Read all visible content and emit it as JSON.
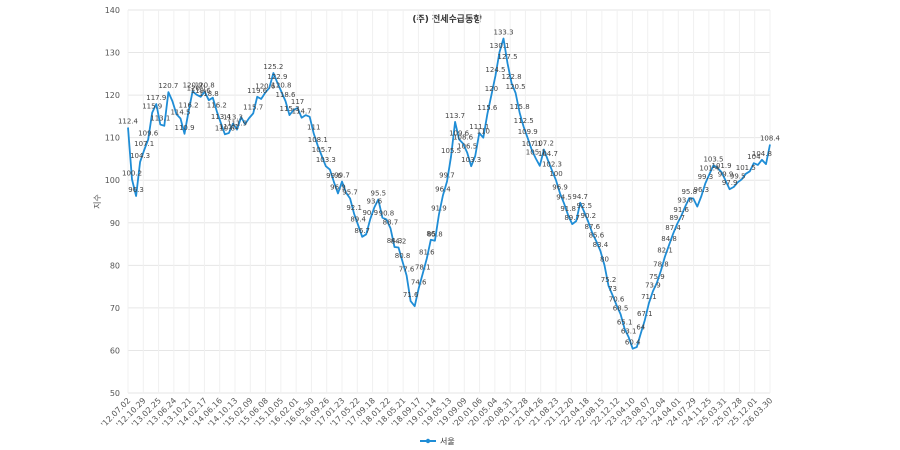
{
  "chart_data": {
    "type": "line",
    "title": "(주) 전세수급동향",
    "ylabel": "지수",
    "xlabel": "",
    "ylim": [
      50,
      140
    ],
    "yticks": [
      50,
      60,
      70,
      80,
      90,
      100,
      110,
      120,
      130,
      140
    ],
    "grid": true,
    "legend_position": "bottom-center",
    "x_tick_labels": [
      "'12.07.02",
      "'12.10.29",
      "'13.02.25",
      "'13.06.24",
      "'13.10.21",
      "'14.02.17",
      "'14.06.16",
      "'14.10.13",
      "'15.02.09",
      "'15.06.08",
      "'15.10.05",
      "'16.02.01",
      "'16.05.30",
      "'16.09.26",
      "'17.01.23",
      "'17.05.22",
      "'17.09.18",
      "'18.01.22",
      "'18.05.21",
      "'18.09.17",
      "'19.01.14",
      "'19.05.13",
      "'19.09.09",
      "'20.01.06",
      "'20.05.04",
      "'20.08.31",
      "'20.12.28",
      "'21.04.26",
      "'21.08.23",
      "'21.12.20",
      "'22.04.18",
      "'22.08.15",
      "'22.12.12",
      "'23.04.10",
      "'23.08.07",
      "'23.12.04",
      "'24.04.01",
      "'24.07.29",
      "'24.11.25",
      "'25.03.31",
      "'25.07.28",
      "'25.12.01",
      "'26.03.30"
    ],
    "series": [
      {
        "name": "서울",
        "color": "#1f8dd6",
        "values": [
          112.4,
          100.2,
          96.3,
          104.3,
          107.1,
          109.6,
          115.9,
          117.9,
          113.1,
          112.8,
          120.7,
          118.6,
          115.5,
          114.5,
          110.9,
          116.2,
          120.9,
          120.1,
          119.6,
          120.8,
          118.8,
          119.4,
          116.2,
          113.4,
          110.8,
          111.1,
          113.3,
          111.9,
          114.8,
          113.2,
          114.6,
          115.7,
          119.6,
          119.1,
          120.6,
          121.7,
          125.2,
          122.9,
          120.8,
          118.6,
          115.3,
          116.5,
          117,
          114.7,
          115.3,
          114.9,
          111,
          108.1,
          105.7,
          103.3,
          102.5,
          99.6,
          96.9,
          99.7,
          97.1,
          95.7,
          92.1,
          89.4,
          86.7,
          87.3,
          90.9,
          93.6,
          95.5,
          91.2,
          90.8,
          88.7,
          84.3,
          84.2,
          80.8,
          77.6,
          71.6,
          70.4,
          74.6,
          78.1,
          81.6,
          86,
          85.8,
          91.9,
          96.4,
          99.7,
          105.5,
          113.7,
          109.6,
          108.6,
          106.5,
          103.3,
          105.7,
          111.1,
          110,
          115.6,
          120,
          124.5,
          130.1,
          133.3,
          127.5,
          122.8,
          120.5,
          115.8,
          112.5,
          109.9,
          107.1,
          105.1,
          103.4,
          107.2,
          104.7,
          102.3,
          100,
          96.9,
          94.5,
          91.8,
          89.7,
          90.4,
          94.7,
          92.5,
          90.2,
          87.6,
          85.6,
          83.4,
          80,
          75.2,
          73,
          70.6,
          68.5,
          65.1,
          63.1,
          60.4,
          60.8,
          64,
          67.1,
          71.1,
          73.9,
          75.9,
          78.8,
          82.1,
          84.8,
          87.4,
          89.7,
          91.6,
          93.8,
          95.8,
          95.7,
          93.8,
          96.3,
          99.3,
          101.4,
          103.5,
          102.9,
          101.9,
          99.9,
          97.9,
          98.4,
          99.5,
          100.2,
          101.5,
          102.1,
          104,
          103.6,
          104.8,
          103.8,
          108.4
        ]
      }
    ],
    "data_labels": [
      {
        "i": 0,
        "t": "112.4"
      },
      {
        "i": 1,
        "t": "100.2"
      },
      {
        "i": 2,
        "t": "96.3"
      },
      {
        "i": 3,
        "t": "104.3"
      },
      {
        "i": 4,
        "t": "107.1"
      },
      {
        "i": 5,
        "t": "109.6"
      },
      {
        "i": 6,
        "t": "115.9"
      },
      {
        "i": 7,
        "t": "117.9"
      },
      {
        "i": 8,
        "t": "113.1"
      },
      {
        "i": 10,
        "t": "120.7"
      },
      {
        "i": 13,
        "t": "114.5"
      },
      {
        "i": 14,
        "t": "110.9"
      },
      {
        "i": 15,
        "t": "116.2"
      },
      {
        "i": 16,
        "t": "120.9"
      },
      {
        "i": 17,
        "t": "120.1"
      },
      {
        "i": 18,
        "t": "119.6"
      },
      {
        "i": 19,
        "t": "120.8"
      },
      {
        "i": 20,
        "t": "118.8"
      },
      {
        "i": 22,
        "t": "116.2"
      },
      {
        "i": 23,
        "t": "113.4"
      },
      {
        "i": 24,
        "t": "110.8"
      },
      {
        "i": 25,
        "t": "111.1"
      },
      {
        "i": 26,
        "t": "113.3"
      },
      {
        "i": 27,
        "t": "111.9"
      },
      {
        "i": 31,
        "t": "115.7"
      },
      {
        "i": 32,
        "t": "119.6"
      },
      {
        "i": 34,
        "t": "120.6"
      },
      {
        "i": 36,
        "t": "125.2"
      },
      {
        "i": 37,
        "t": "122.9"
      },
      {
        "i": 38,
        "t": "120.8"
      },
      {
        "i": 39,
        "t": "118.6"
      },
      {
        "i": 40,
        "t": "115.3"
      },
      {
        "i": 42,
        "t": "117"
      },
      {
        "i": 43,
        "t": "114.7"
      },
      {
        "i": 46,
        "t": "111"
      },
      {
        "i": 47,
        "t": "108.1"
      },
      {
        "i": 48,
        "t": "105.7"
      },
      {
        "i": 49,
        "t": "103.3"
      },
      {
        "i": 51,
        "t": "99.6"
      },
      {
        "i": 52,
        "t": "96.9"
      },
      {
        "i": 53,
        "t": "99.7"
      },
      {
        "i": 55,
        "t": "95.7"
      },
      {
        "i": 56,
        "t": "92.1"
      },
      {
        "i": 57,
        "t": "89.4"
      },
      {
        "i": 58,
        "t": "86.7"
      },
      {
        "i": 60,
        "t": "90.9"
      },
      {
        "i": 61,
        "t": "93.6"
      },
      {
        "i": 62,
        "t": "95.5"
      },
      {
        "i": 64,
        "t": "90.8"
      },
      {
        "i": 65,
        "t": "88.7"
      },
      {
        "i": 66,
        "t": "84.3"
      },
      {
        "i": 67,
        "t": "84.2"
      },
      {
        "i": 68,
        "t": "80.8"
      },
      {
        "i": 69,
        "t": "77.6"
      },
      {
        "i": 70,
        "t": "71.6"
      },
      {
        "i": 72,
        "t": "74.6"
      },
      {
        "i": 73,
        "t": "78.1"
      },
      {
        "i": 74,
        "t": "81.6"
      },
      {
        "i": 75,
        "t": "86"
      },
      {
        "i": 76,
        "t": "85.8"
      },
      {
        "i": 77,
        "t": "91.9"
      },
      {
        "i": 78,
        "t": "96.4"
      },
      {
        "i": 79,
        "t": "99.7"
      },
      {
        "i": 80,
        "t": "105.5"
      },
      {
        "i": 81,
        "t": "113.7"
      },
      {
        "i": 82,
        "t": "109.6"
      },
      {
        "i": 83,
        "t": "108.6"
      },
      {
        "i": 84,
        "t": "106.5"
      },
      {
        "i": 85,
        "t": "103.3"
      },
      {
        "i": 87,
        "t": "111.1"
      },
      {
        "i": 88,
        "t": "110"
      },
      {
        "i": 89,
        "t": "115.6"
      },
      {
        "i": 90,
        "t": "120"
      },
      {
        "i": 91,
        "t": "124.5"
      },
      {
        "i": 92,
        "t": "130.1"
      },
      {
        "i": 93,
        "t": "133.3"
      },
      {
        "i": 94,
        "t": "127.5"
      },
      {
        "i": 95,
        "t": "122.8"
      },
      {
        "i": 96,
        "t": "120.5"
      },
      {
        "i": 97,
        "t": "115.8"
      },
      {
        "i": 98,
        "t": "112.5"
      },
      {
        "i": 99,
        "t": "109.9"
      },
      {
        "i": 100,
        "t": "107.1"
      },
      {
        "i": 101,
        "t": "105.1"
      },
      {
        "i": 103,
        "t": "107.2"
      },
      {
        "i": 104,
        "t": "104.7"
      },
      {
        "i": 105,
        "t": "102.3"
      },
      {
        "i": 106,
        "t": "100"
      },
      {
        "i": 107,
        "t": "96.9"
      },
      {
        "i": 108,
        "t": "94.5"
      },
      {
        "i": 109,
        "t": "91.8"
      },
      {
        "i": 110,
        "t": "89.7"
      },
      {
        "i": 112,
        "t": "94.7"
      },
      {
        "i": 113,
        "t": "92.5"
      },
      {
        "i": 114,
        "t": "90.2"
      },
      {
        "i": 115,
        "t": "87.6"
      },
      {
        "i": 116,
        "t": "85.6"
      },
      {
        "i": 117,
        "t": "83.4"
      },
      {
        "i": 118,
        "t": "80"
      },
      {
        "i": 119,
        "t": "75.2"
      },
      {
        "i": 120,
        "t": "73"
      },
      {
        "i": 121,
        "t": "70.6"
      },
      {
        "i": 122,
        "t": "68.5"
      },
      {
        "i": 123,
        "t": "65.1"
      },
      {
        "i": 124,
        "t": "63.1"
      },
      {
        "i": 125,
        "t": "60.4"
      },
      {
        "i": 127,
        "t": "64"
      },
      {
        "i": 128,
        "t": "67.1"
      },
      {
        "i": 129,
        "t": "71.1"
      },
      {
        "i": 130,
        "t": "73.9"
      },
      {
        "i": 131,
        "t": "75.9"
      },
      {
        "i": 132,
        "t": "78.8"
      },
      {
        "i": 133,
        "t": "82.1"
      },
      {
        "i": 134,
        "t": "84.8"
      },
      {
        "i": 135,
        "t": "87.4"
      },
      {
        "i": 136,
        "t": "89.7"
      },
      {
        "i": 137,
        "t": "91.6"
      },
      {
        "i": 138,
        "t": "93.8"
      },
      {
        "i": 139,
        "t": "95.8"
      },
      {
        "i": 142,
        "t": "96.3"
      },
      {
        "i": 143,
        "t": "99.3"
      },
      {
        "i": 144,
        "t": "101.4"
      },
      {
        "i": 145,
        "t": "103.5"
      },
      {
        "i": 147,
        "t": "101.9"
      },
      {
        "i": 148,
        "t": "99.9"
      },
      {
        "i": 149,
        "t": "97.9"
      },
      {
        "i": 151,
        "t": "99.5"
      },
      {
        "i": 153,
        "t": "101.5"
      },
      {
        "i": 155,
        "t": "104"
      },
      {
        "i": 157,
        "t": "104.8"
      },
      {
        "i": 159,
        "t": "108.4"
      }
    ]
  }
}
